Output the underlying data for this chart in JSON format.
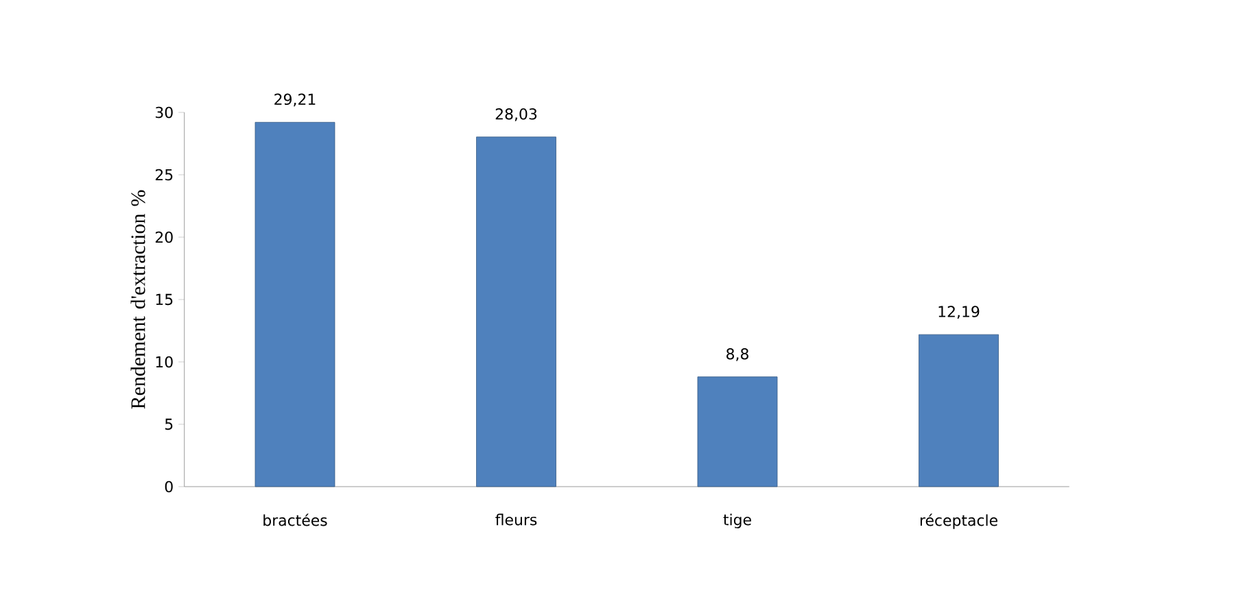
{
  "chart_data": {
    "type": "bar",
    "ylabel": "Rendement d'extraction %",
    "categories": [
      "bractées",
      "fleurs",
      "tige",
      "réceptacle"
    ],
    "values": [
      29.21,
      28.03,
      8.8,
      12.19
    ],
    "value_labels": [
      "29,21",
      "28,03",
      "8,8",
      "12,19"
    ],
    "color": "#4f81bd",
    "ylim": [
      0,
      30
    ],
    "yticks": [
      0,
      5,
      10,
      15,
      20,
      25,
      30
    ],
    "grid": false
  }
}
